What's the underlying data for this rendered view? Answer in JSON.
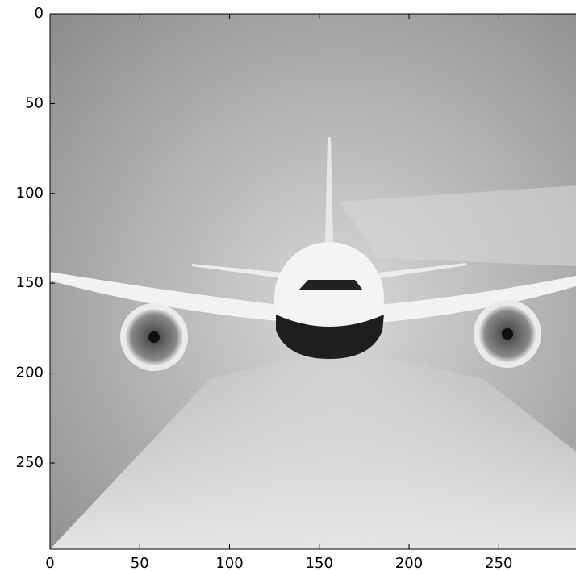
{
  "chart_data": {
    "type": "image",
    "xlim": [
      0,
      293
    ],
    "ylim": [
      298,
      0
    ],
    "xticks": [
      0,
      50,
      100,
      150,
      200,
      250
    ],
    "yticks": [
      0,
      50,
      100,
      150,
      200,
      250
    ]
  }
}
